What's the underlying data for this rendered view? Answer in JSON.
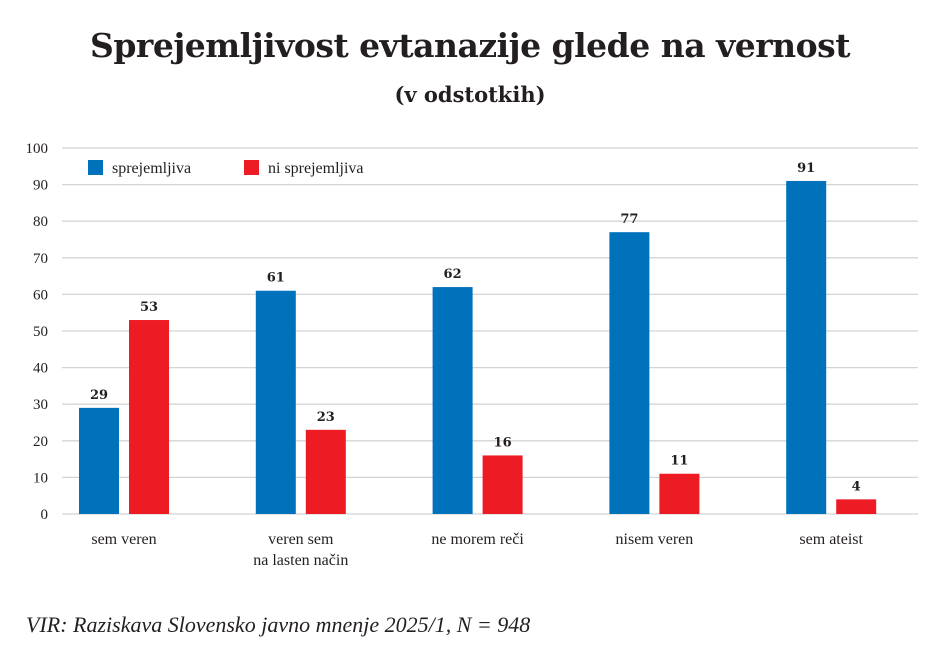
{
  "chart_data": {
    "type": "bar",
    "title": "Sprejemljivost evtanazije glede na vernost",
    "subtitle": "(v odstotkih)",
    "categories": [
      [
        "sem veren"
      ],
      [
        "veren sem",
        "na lasten način"
      ],
      [
        "ne morem reči"
      ],
      [
        "nisem veren"
      ],
      [
        "sem ateist"
      ]
    ],
    "series": [
      {
        "name": "sprejemljiva",
        "color": "#0072bc",
        "values": [
          29,
          61,
          62,
          77,
          91
        ]
      },
      {
        "name": "ni sprejemljiva",
        "color": "#ed1c24",
        "values": [
          53,
          23,
          16,
          11,
          4
        ]
      }
    ],
    "ylim": [
      0,
      100
    ],
    "yticks": [
      0,
      10,
      20,
      30,
      40,
      50,
      60,
      70,
      80,
      90,
      100
    ],
    "grid": true,
    "legend": "top-left",
    "data_labels": true
  },
  "source": "VIR: Raziskava Slovensko javno mnenje 2025/1, N = 948"
}
